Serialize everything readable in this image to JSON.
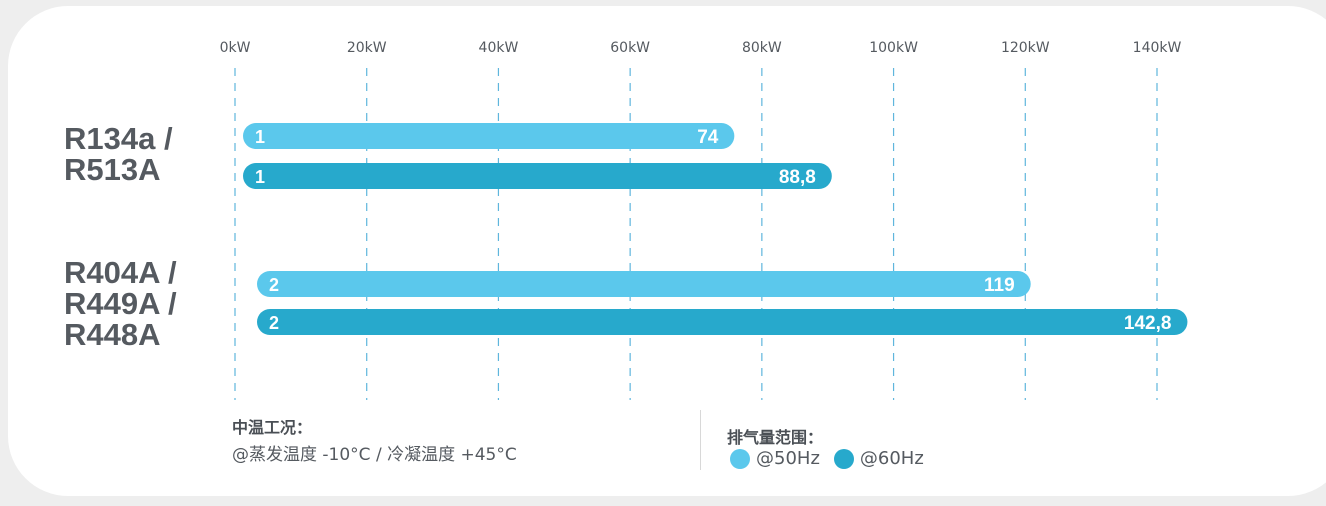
{
  "chart_data": {
    "type": "bar",
    "orientation": "horizontal",
    "xlim": [
      0,
      140
    ],
    "x_tick_labels": [
      "0kW",
      "20kW",
      "40kW",
      "60kW",
      "80kW",
      "100kW",
      "120kW",
      "140kW"
    ],
    "grid": "vertical dashed",
    "categories": [
      "R134a /\nR513A",
      "R404A /\nR449A /\nR448A"
    ],
    "series": [
      {
        "name": "@50Hz",
        "color": "#5bc8ec",
        "values": [
          74,
          119
        ],
        "value_labels": [
          "74",
          "119"
        ],
        "index_labels": [
          "1",
          "2"
        ]
      },
      {
        "name": "@60Hz",
        "color": "#27a9cc",
        "values": [
          88.8,
          142.8
        ],
        "value_labels": [
          "88,8",
          "142,8"
        ],
        "index_labels": [
          "1",
          "2"
        ]
      }
    ]
  },
  "notes": {
    "title": "中温工况：",
    "text": "@蒸发温度 -10°C / 冷凝温度 +45°C"
  },
  "legend": {
    "title": "排气量范围：",
    "items": [
      {
        "label": "@50Hz",
        "color": "#5bc8ec"
      },
      {
        "label": "@60Hz",
        "color": "#27a9cc"
      }
    ]
  }
}
